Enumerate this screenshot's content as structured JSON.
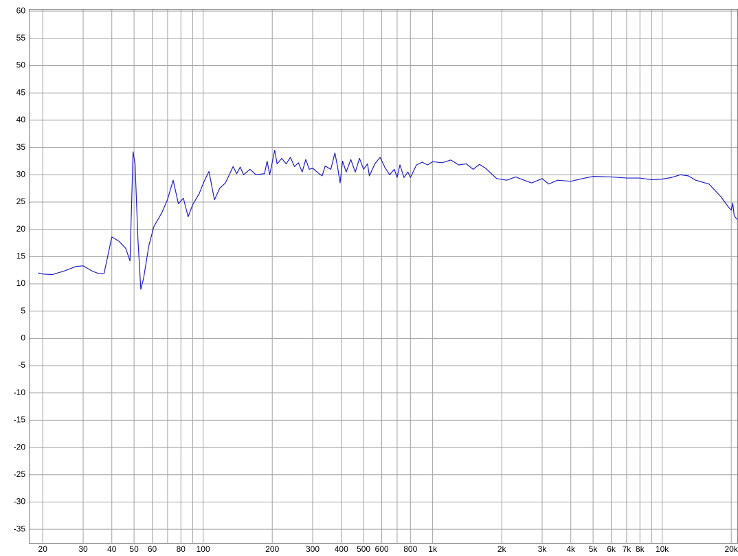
{
  "chart_data": {
    "type": "line",
    "color": "#1c1cc8",
    "grid": true,
    "log_x": true,
    "xlim": [
      17.4,
      21400
    ],
    "ylim": [
      -37.5,
      60.4
    ],
    "xticks": [
      20,
      30,
      40,
      50,
      60,
      80,
      100,
      200,
      300,
      400,
      500,
      600,
      800,
      {
        "value": 1000,
        "label": "1k"
      },
      {
        "value": 2000,
        "label": "2k"
      },
      {
        "value": 3000,
        "label": "3k"
      },
      {
        "value": 4000,
        "label": "4k"
      },
      {
        "value": 5000,
        "label": "5k"
      },
      {
        "value": 6000,
        "label": "6k"
      },
      {
        "value": 7000,
        "label": "7k"
      },
      {
        "value": 8000,
        "label": "8k"
      },
      {
        "value": 10000,
        "label": "10k"
      },
      {
        "value": 20000,
        "label": "20k"
      }
    ],
    "xminor": [
      70,
      90,
      700,
      9000
    ],
    "yticks": [
      60,
      55,
      50,
      45,
      40,
      35,
      30,
      25,
      20,
      15,
      10,
      5,
      0,
      -5,
      -10,
      -15,
      -20,
      -25,
      -30,
      -35
    ],
    "x": [
      19.1,
      20,
      22,
      25,
      28,
      30,
      33,
      35,
      37,
      40,
      43,
      46,
      48,
      49.5,
      50.5,
      52,
      53.5,
      55,
      58,
      61,
      66,
      70,
      74,
      78,
      82,
      86,
      90,
      96,
      101,
      106,
      112,
      118,
      125,
      130,
      135,
      140,
      145,
      150,
      160,
      170,
      185,
      190,
      195,
      205,
      210,
      220,
      230,
      240,
      250,
      260,
      270,
      280,
      290,
      300,
      320,
      330,
      340,
      360,
      375,
      385,
      395,
      405,
      420,
      440,
      460,
      480,
      500,
      520,
      530,
      560,
      590,
      620,
      650,
      680,
      700,
      720,
      750,
      780,
      800,
      850,
      900,
      950,
      1000,
      1100,
      1200,
      1300,
      1400,
      1500,
      1600,
      1700,
      1900,
      2100,
      2300,
      2500,
      2700,
      3000,
      3200,
      3500,
      4000,
      4500,
      5000,
      6000,
      7000,
      8000,
      9000,
      10000,
      11000,
      12000,
      13000,
      14000,
      16000,
      18000,
      19500,
      20000,
      20300,
      20600,
      21200
    ],
    "values": [
      12.0,
      11.8,
      11.7,
      12.4,
      13.2,
      13.3,
      12.3,
      11.9,
      11.9,
      18.6,
      17.8,
      16.5,
      14.2,
      34.2,
      32.0,
      18.0,
      9.0,
      11.0,
      17.0,
      20.5,
      23.0,
      25.5,
      29.0,
      24.7,
      25.7,
      22.3,
      24.5,
      26.5,
      28.8,
      30.6,
      25.4,
      27.5,
      28.5,
      30.0,
      31.5,
      30.2,
      31.4,
      30.0,
      31.0,
      30.0,
      30.2,
      32.5,
      30.0,
      34.5,
      32.0,
      33.0,
      32.0,
      33.2,
      31.5,
      32.2,
      30.5,
      32.8,
      31.0,
      31.2,
      30.2,
      29.8,
      31.6,
      31.0,
      34.0,
      31.5,
      28.5,
      32.5,
      30.5,
      32.8,
      30.5,
      33.0,
      31.0,
      32.0,
      29.8,
      32.0,
      33.2,
      31.3,
      30.0,
      31.0,
      29.5,
      31.8,
      29.5,
      30.5,
      29.5,
      31.8,
      32.3,
      31.8,
      32.4,
      32.2,
      32.7,
      31.8,
      32.0,
      31.0,
      31.9,
      31.2,
      29.3,
      29.0,
      29.6,
      29.0,
      28.5,
      29.3,
      28.3,
      29.0,
      28.8,
      29.3,
      29.7,
      29.6,
      29.4,
      29.4,
      29.1,
      29.2,
      29.5,
      30.0,
      29.8,
      29.0,
      28.3,
      26.0,
      24.0,
      23.5,
      24.8,
      22.5,
      21.8
    ]
  }
}
